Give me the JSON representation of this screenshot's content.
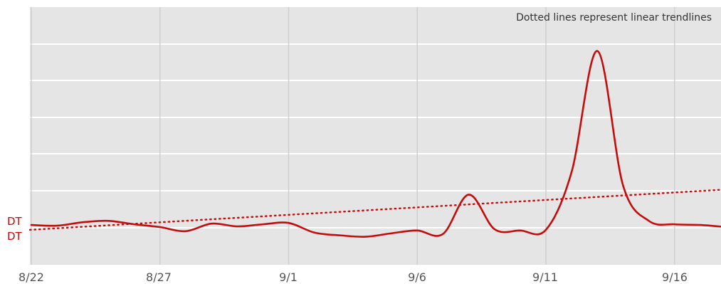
{
  "chart_data": {
    "type": "line",
    "note": "Dotted lines represent linear trendlines",
    "x_ticks": [
      "8/22",
      "8/27",
      "9/1",
      "9/6",
      "9/11",
      "9/16"
    ],
    "series": [
      {
        "name": "DT",
        "color": "#c40c0c",
        "x": [
          "8/22",
          "8/23",
          "8/24",
          "8/25",
          "8/26",
          "8/27",
          "8/28",
          "8/29",
          "8/30",
          "8/31",
          "9/1",
          "9/2",
          "9/3",
          "9/4",
          "9/5",
          "9/6",
          "9/7",
          "9/8",
          "9/9",
          "9/10",
          "9/11",
          "9/12",
          "9/13",
          "9/14",
          "9/15",
          "9/16",
          "9/17",
          "9/18"
        ],
        "values": [
          3,
          2,
          7,
          9,
          4,
          0,
          -6,
          5,
          1,
          4,
          6,
          -8,
          -12,
          -14,
          -9,
          -5,
          -10,
          47,
          -3,
          -5,
          -4,
          80,
          255,
          60,
          9,
          4,
          3,
          0
        ],
        "trend": {
          "start": -4,
          "end": 54
        }
      }
    ],
    "ylim": [
      -40,
      320
    ],
    "grid": true
  }
}
